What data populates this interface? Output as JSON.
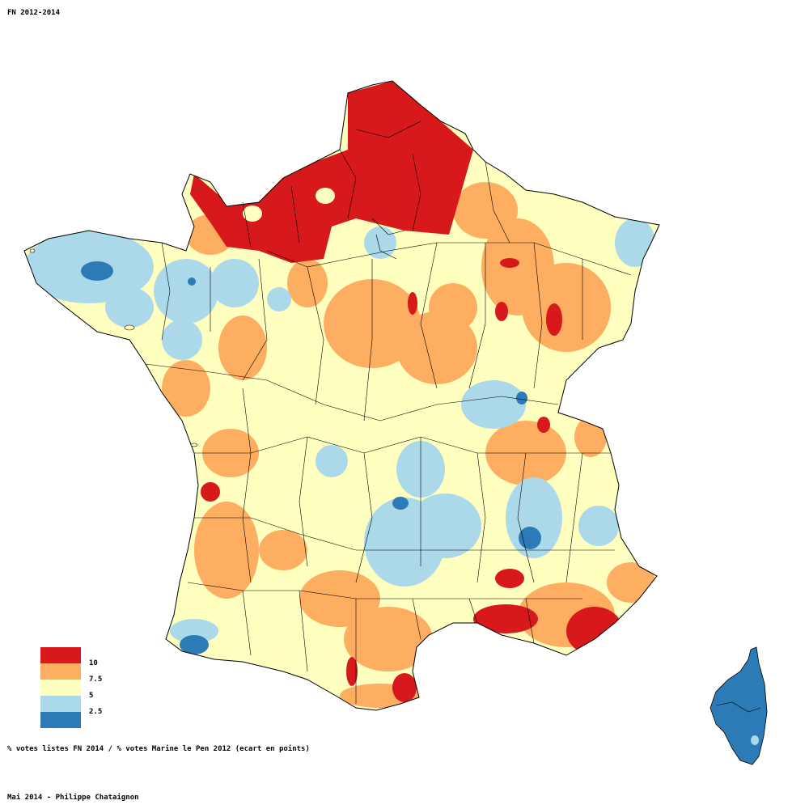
{
  "title": "FN 2012-2014",
  "caption": "% votes listes FN 2014 / % votes Marine le Pen 2012 (ecart en points)",
  "credit": "Mai 2014 - Philippe Chataignon",
  "legend": {
    "labels": [
      "10",
      "7.5",
      "5",
      "2.5"
    ],
    "colors": [
      "#d7191c",
      "#fdae61",
      "#ffffbf",
      "#abd9e9",
      "#2c7bb6"
    ]
  }
}
